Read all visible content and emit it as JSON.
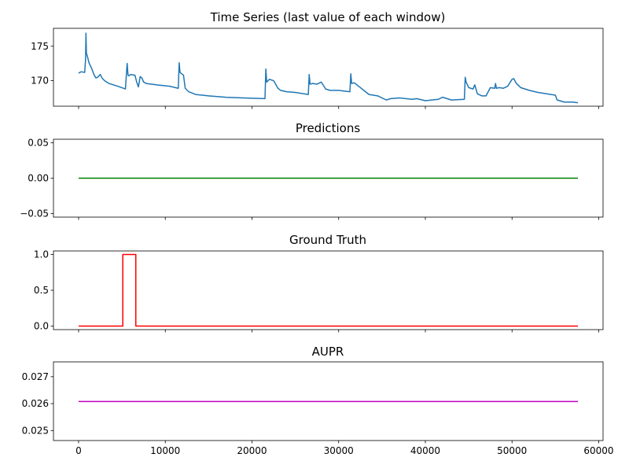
{
  "figure": {
    "x_ticks": [
      0,
      10000,
      20000,
      30000,
      40000,
      50000,
      60000
    ],
    "x_tick_labels": [
      "0",
      "10000",
      "20000",
      "30000",
      "40000",
      "50000",
      "60000"
    ],
    "xlim": [
      -2900,
      60500
    ]
  },
  "chart_data": [
    {
      "type": "line",
      "title": "Time Series (last value of each window)",
      "xlim": [
        -2900,
        60500
      ],
      "ylim": [
        166.3,
        177.6
      ],
      "y_ticks": [
        170,
        175
      ],
      "y_tick_labels": [
        "170",
        "175"
      ],
      "grid": false,
      "color": "#1f77b4",
      "x": [
        0,
        300,
        700,
        800,
        850,
        900,
        1000,
        1200,
        1500,
        1800,
        2000,
        2200,
        2500,
        2700,
        3000,
        3500,
        4500,
        5400,
        5600,
        5700,
        5800,
        6000,
        6500,
        6700,
        6900,
        7100,
        7300,
        7500,
        7800,
        9000,
        10500,
        11500,
        11600,
        11700,
        11900,
        12100,
        12300,
        12700,
        13500,
        15000,
        17000,
        19000,
        21500,
        21600,
        21700,
        22000,
        22500,
        23000,
        23300,
        24000,
        25000,
        26500,
        26600,
        26700,
        27000,
        27500,
        28000,
        28500,
        29000,
        30000,
        31300,
        31400,
        31500,
        31800,
        32500,
        33000,
        33500,
        34500,
        35500,
        36000,
        37000,
        38500,
        39000,
        40000,
        41500,
        42000,
        43000,
        44500,
        44600,
        44700,
        45000,
        45500,
        45700,
        46000,
        46500,
        47000,
        47500,
        48000,
        48100,
        48200,
        48500,
        49000,
        49500,
        50000,
        50200,
        50500,
        51000,
        52000,
        53000,
        54000,
        55000,
        55200,
        55500,
        56000,
        57000,
        57600
      ],
      "y": [
        171.1,
        171.3,
        171.2,
        173.0,
        176.9,
        174.0,
        173.6,
        172.6,
        171.8,
        170.8,
        170.4,
        170.5,
        170.9,
        170.4,
        170.0,
        169.6,
        169.2,
        168.8,
        172.5,
        170.8,
        170.7,
        170.9,
        170.8,
        169.8,
        169.1,
        170.6,
        170.4,
        169.8,
        169.6,
        169.4,
        169.2,
        168.9,
        172.6,
        171.2,
        171.0,
        170.8,
        168.9,
        168.4,
        168.0,
        167.8,
        167.6,
        167.5,
        167.4,
        171.7,
        169.8,
        170.2,
        170.0,
        168.9,
        168.6,
        168.4,
        168.3,
        168.0,
        170.9,
        169.5,
        169.6,
        169.5,
        169.8,
        168.8,
        168.6,
        168.6,
        168.4,
        171.0,
        169.6,
        169.7,
        169.0,
        168.5,
        168.0,
        167.8,
        167.2,
        167.4,
        167.5,
        167.3,
        167.4,
        167.1,
        167.3,
        167.6,
        167.2,
        167.3,
        170.5,
        169.8,
        169.0,
        168.8,
        169.4,
        168.1,
        167.8,
        167.8,
        169.0,
        168.9,
        169.6,
        168.9,
        169.0,
        168.9,
        169.2,
        170.2,
        170.3,
        169.6,
        169.0,
        168.6,
        168.3,
        168.1,
        167.9,
        167.2,
        167.1,
        166.9,
        166.9,
        166.8
      ]
    },
    {
      "type": "line",
      "title": "Predictions",
      "xlim": [
        -2900,
        60500
      ],
      "ylim": [
        -0.055,
        0.055
      ],
      "y_ticks": [
        -0.05,
        0.0,
        0.05
      ],
      "y_tick_labels": [
        "−0.05",
        "0.00",
        "0.05"
      ],
      "grid": false,
      "color": "#008000",
      "x": [
        0,
        57600
      ],
      "y": [
        0,
        0
      ]
    },
    {
      "type": "line",
      "title": "Ground Truth",
      "xlim": [
        -2900,
        60500
      ],
      "ylim": [
        -0.05,
        1.05
      ],
      "y_ticks": [
        0.0,
        0.5,
        1.0
      ],
      "y_tick_labels": [
        "0.0",
        "0.5",
        "1.0"
      ],
      "grid": false,
      "color": "#ff0000",
      "x": [
        0,
        5100,
        5100,
        6600,
        6600,
        57600
      ],
      "y": [
        0,
        0,
        1,
        1,
        0,
        0
      ]
    },
    {
      "type": "line",
      "title": "AUPR",
      "xlim": [
        -2900,
        60500
      ],
      "ylim": [
        0.02463,
        0.02755
      ],
      "y_ticks": [
        0.025,
        0.026,
        0.027
      ],
      "y_tick_labels": [
        "0.025",
        "0.026",
        "0.027"
      ],
      "grid": false,
      "color": "#bf00bf",
      "x": [
        0,
        57600
      ],
      "y": [
        0.02608,
        0.02608
      ]
    }
  ]
}
